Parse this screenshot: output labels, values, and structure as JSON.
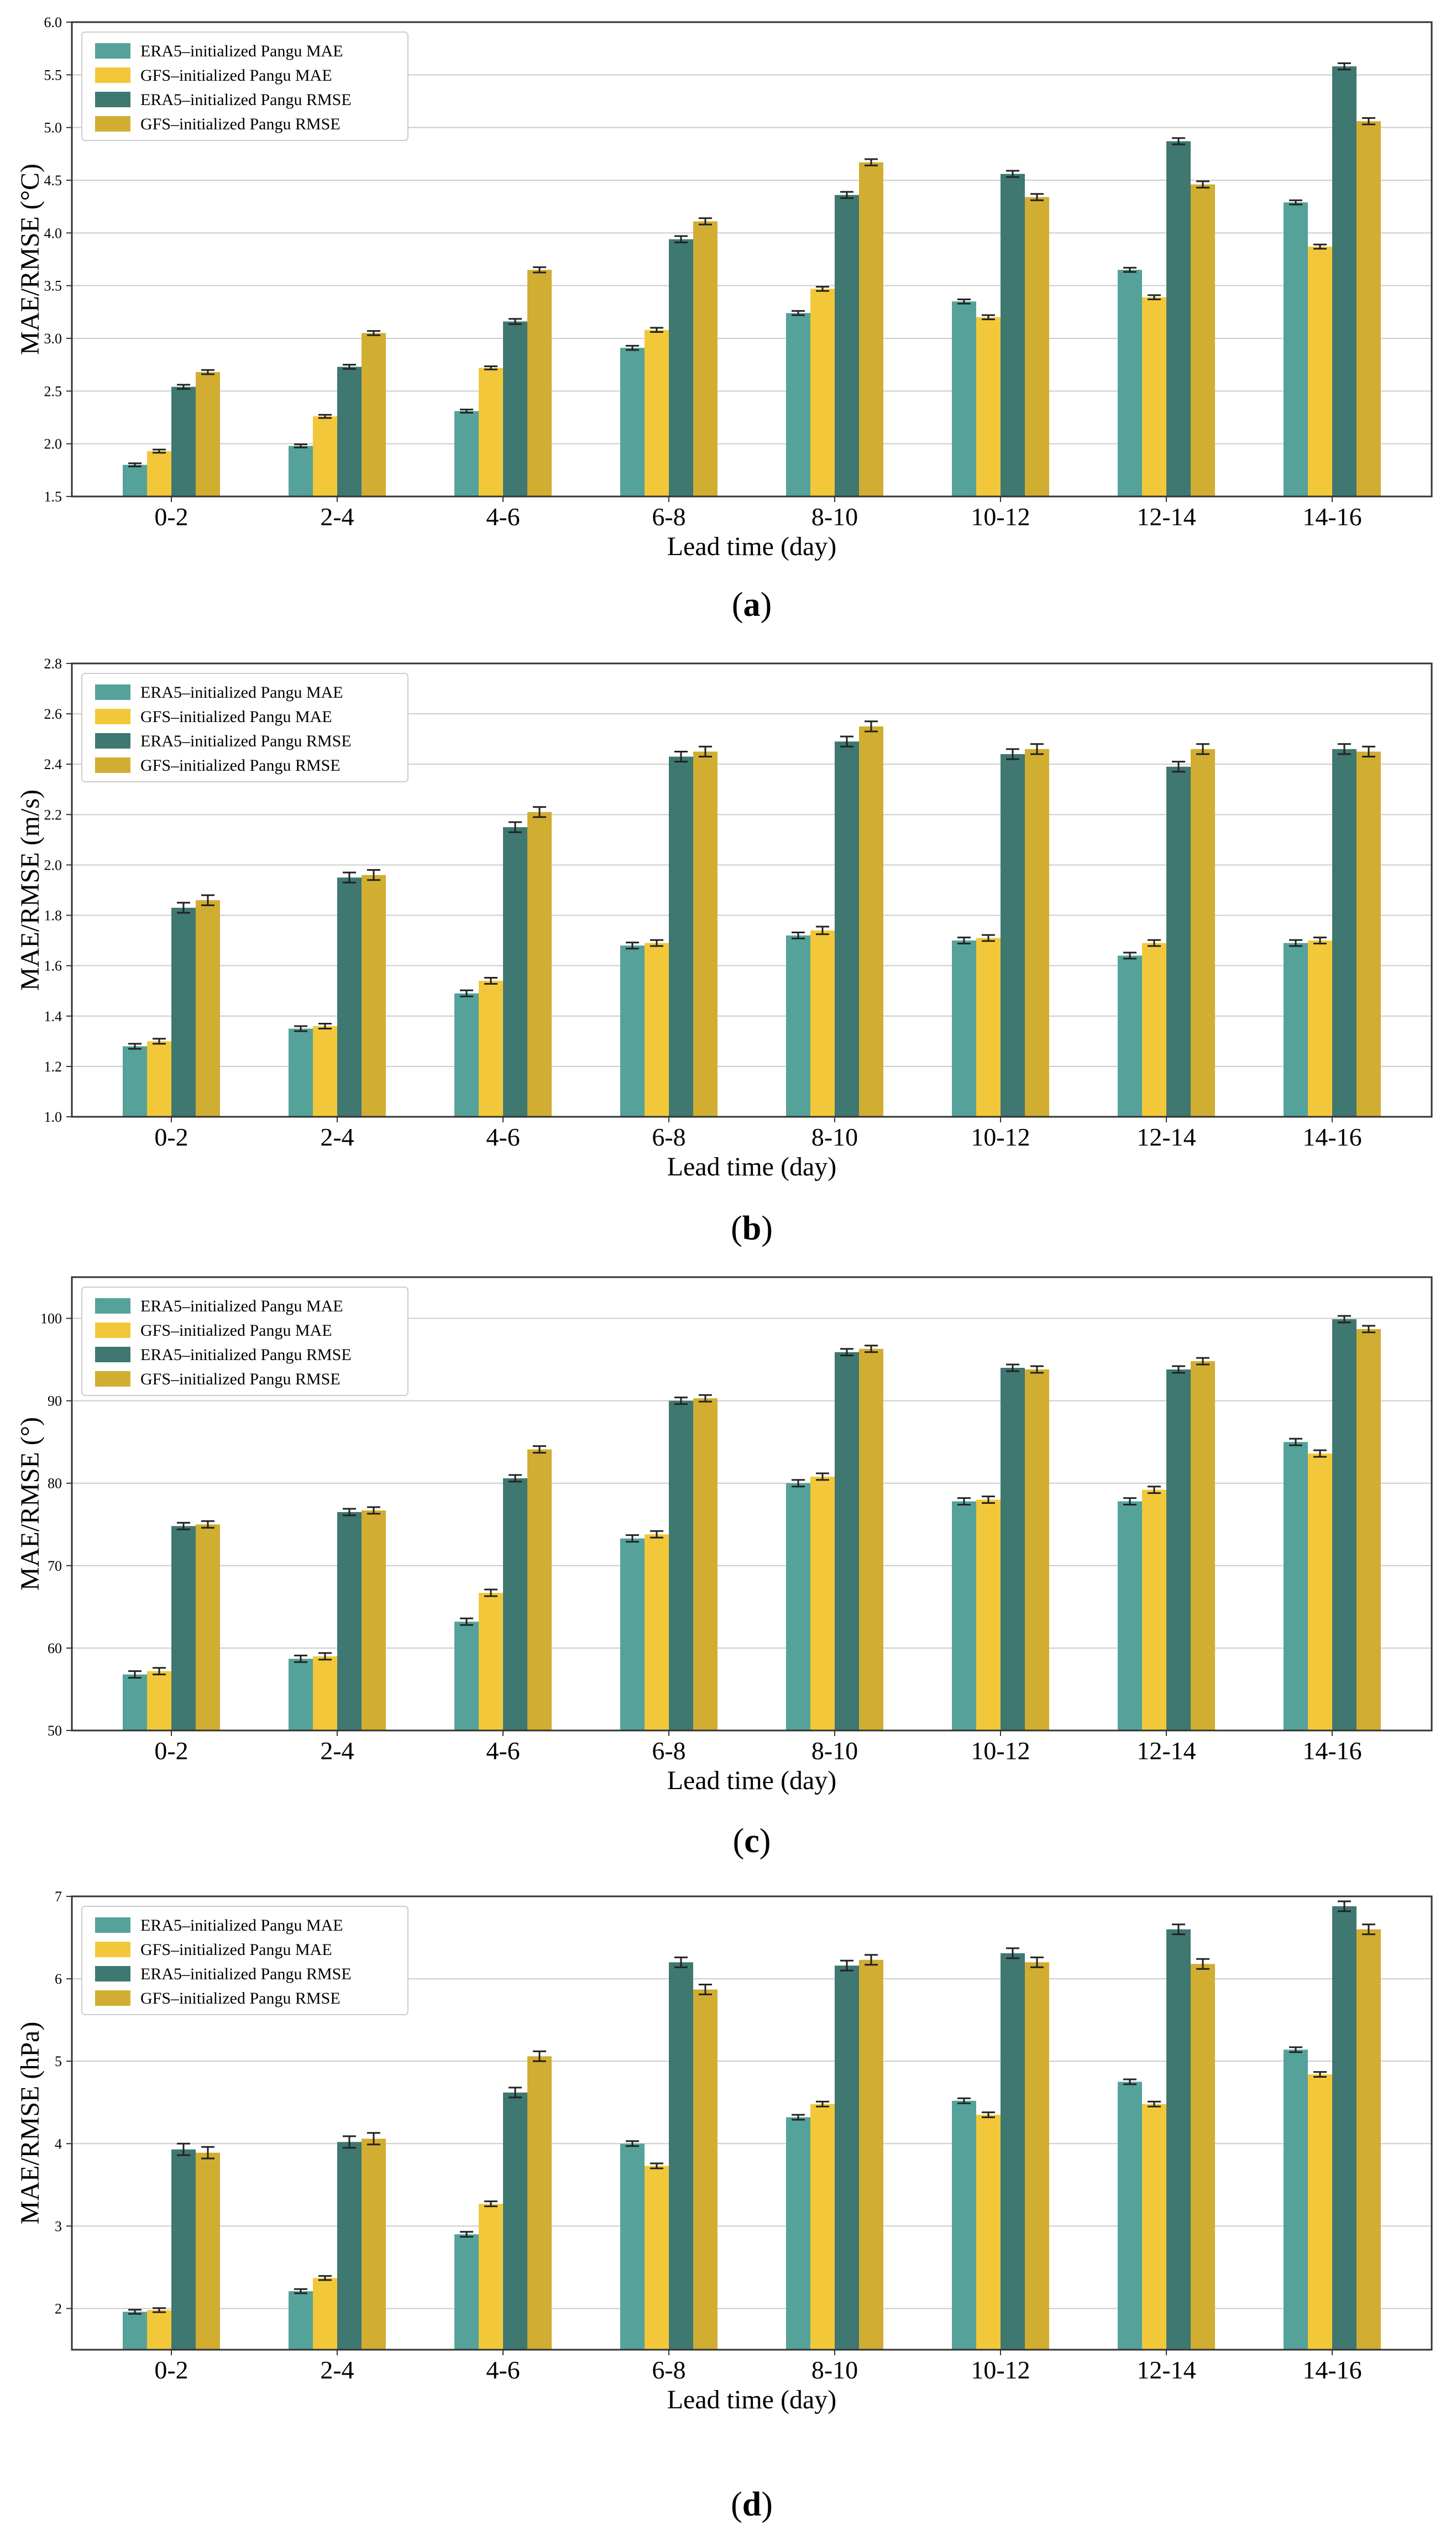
{
  "colors": {
    "era5_mae": "#55a29a",
    "gfs_mae": "#f2c83a",
    "era5_rmse": "#3f7771",
    "gfs_rmse": "#d1ad32",
    "grid": "#cccccc",
    "errorbar": "#222222"
  },
  "chart_data": [
    {
      "type": "bar",
      "panel_label": "a",
      "title": "",
      "xlabel": "Lead time (day)",
      "ylabel": "MAE/RMSE (°C)",
      "ylim": [
        1.5,
        6.0
      ],
      "yticks": [
        1.5,
        2.0,
        2.5,
        3.0,
        3.5,
        4.0,
        4.5,
        5.0,
        5.5,
        6.0
      ],
      "ytick_labels": [
        "1.5",
        "2.0",
        "2.5",
        "3.0",
        "3.5",
        "4.0",
        "4.5",
        "5.0",
        "5.5",
        "6.0"
      ],
      "grid": true,
      "legend_position": "top-left",
      "categories": [
        "0-2",
        "2-4",
        "4-6",
        "6-8",
        "8-10",
        "10-12",
        "12-14",
        "14-16"
      ],
      "series": [
        {
          "name": "ERA5–initialized Pangu MAE",
          "color_key": "era5_mae",
          "values": [
            1.8,
            1.98,
            2.31,
            2.91,
            3.24,
            3.35,
            3.65,
            4.29
          ],
          "errors": [
            0.015,
            0.015,
            0.015,
            0.02,
            0.02,
            0.02,
            0.02,
            0.02
          ]
        },
        {
          "name": "GFS–initialized Pangu MAE",
          "color_key": "gfs_mae",
          "values": [
            1.93,
            2.26,
            2.72,
            3.08,
            3.47,
            3.2,
            3.39,
            3.87
          ],
          "errors": [
            0.015,
            0.015,
            0.015,
            0.02,
            0.02,
            0.02,
            0.02,
            0.02
          ]
        },
        {
          "name": "ERA5–initialized Pangu RMSE",
          "color_key": "era5_rmse",
          "values": [
            2.54,
            2.73,
            3.16,
            3.94,
            4.36,
            4.56,
            4.87,
            5.58
          ],
          "errors": [
            0.02,
            0.02,
            0.025,
            0.03,
            0.03,
            0.03,
            0.03,
            0.03
          ]
        },
        {
          "name": "GFS–initialized Pangu RMSE",
          "color_key": "gfs_rmse",
          "values": [
            2.68,
            3.05,
            3.65,
            4.11,
            4.67,
            4.34,
            4.46,
            5.06
          ],
          "errors": [
            0.02,
            0.02,
            0.025,
            0.03,
            0.03,
            0.03,
            0.03,
            0.03
          ]
        }
      ]
    },
    {
      "type": "bar",
      "panel_label": "b",
      "title": "",
      "xlabel": "Lead time (day)",
      "ylabel": "MAE/RMSE (m/s)",
      "ylim": [
        1.0,
        2.8
      ],
      "yticks": [
        1.0,
        1.2,
        1.4,
        1.6,
        1.8,
        2.0,
        2.2,
        2.4,
        2.6,
        2.8
      ],
      "ytick_labels": [
        "1.0",
        "1.2",
        "1.4",
        "1.6",
        "1.8",
        "2.0",
        "2.2",
        "2.4",
        "2.6",
        "2.8"
      ],
      "grid": true,
      "legend_position": "top-left",
      "categories": [
        "0-2",
        "2-4",
        "4-6",
        "6-8",
        "8-10",
        "10-12",
        "12-14",
        "14-16"
      ],
      "series": [
        {
          "name": "ERA5–initialized Pangu MAE",
          "color_key": "era5_mae",
          "values": [
            1.28,
            1.35,
            1.49,
            1.68,
            1.72,
            1.7,
            1.64,
            1.69
          ],
          "errors": [
            0.01,
            0.01,
            0.012,
            0.012,
            0.012,
            0.012,
            0.012,
            0.012
          ]
        },
        {
          "name": "GFS–initialized Pangu MAE",
          "color_key": "gfs_mae",
          "values": [
            1.3,
            1.36,
            1.54,
            1.69,
            1.74,
            1.71,
            1.69,
            1.7
          ],
          "errors": [
            0.01,
            0.01,
            0.012,
            0.012,
            0.015,
            0.012,
            0.012,
            0.012
          ]
        },
        {
          "name": "ERA5–initialized Pangu RMSE",
          "color_key": "era5_rmse",
          "values": [
            1.83,
            1.95,
            2.15,
            2.43,
            2.49,
            2.44,
            2.39,
            2.46
          ],
          "errors": [
            0.02,
            0.02,
            0.02,
            0.02,
            0.02,
            0.02,
            0.02,
            0.02
          ]
        },
        {
          "name": "GFS–initialized Pangu RMSE",
          "color_key": "gfs_rmse",
          "values": [
            1.86,
            1.96,
            2.21,
            2.45,
            2.55,
            2.46,
            2.46,
            2.45
          ],
          "errors": [
            0.02,
            0.02,
            0.02,
            0.02,
            0.02,
            0.02,
            0.02,
            0.02
          ]
        }
      ]
    },
    {
      "type": "bar",
      "panel_label": "c",
      "title": "",
      "xlabel": "Lead time (day)",
      "ylabel": "MAE/RMSE (°)",
      "ylim": [
        50,
        105
      ],
      "yticks": [
        50,
        60,
        70,
        80,
        90,
        100
      ],
      "ytick_labels": [
        "50",
        "60",
        "70",
        "80",
        "90",
        "100"
      ],
      "grid": true,
      "legend_position": "top-left",
      "categories": [
        "0-2",
        "2-4",
        "4-6",
        "6-8",
        "8-10",
        "10-12",
        "12-14",
        "14-16"
      ],
      "series": [
        {
          "name": "ERA5–initialized Pangu MAE",
          "color_key": "era5_mae",
          "values": [
            56.8,
            58.7,
            63.2,
            73.3,
            80.0,
            77.8,
            77.8,
            85.0
          ],
          "errors": [
            0.4,
            0.4,
            0.4,
            0.4,
            0.4,
            0.4,
            0.4,
            0.4
          ]
        },
        {
          "name": "GFS–initialized Pangu MAE",
          "color_key": "gfs_mae",
          "values": [
            57.2,
            59.0,
            66.7,
            73.8,
            80.8,
            78.0,
            79.2,
            83.6
          ],
          "errors": [
            0.4,
            0.4,
            0.4,
            0.4,
            0.4,
            0.4,
            0.4,
            0.4
          ]
        },
        {
          "name": "ERA5–initialized Pangu RMSE",
          "color_key": "era5_rmse",
          "values": [
            74.8,
            76.5,
            80.6,
            90.0,
            95.9,
            94.0,
            93.8,
            99.9
          ],
          "errors": [
            0.4,
            0.4,
            0.4,
            0.4,
            0.4,
            0.4,
            0.4,
            0.4
          ]
        },
        {
          "name": "GFS–initialized Pangu RMSE",
          "color_key": "gfs_rmse",
          "values": [
            75.0,
            76.7,
            84.1,
            90.3,
            96.3,
            93.8,
            94.8,
            98.7
          ],
          "errors": [
            0.4,
            0.4,
            0.4,
            0.4,
            0.4,
            0.4,
            0.4,
            0.4
          ]
        }
      ]
    },
    {
      "type": "bar",
      "panel_label": "d",
      "title": "",
      "xlabel": "Lead time (day)",
      "ylabel": "MAE/RMSE (hPa)",
      "ylim": [
        1.5,
        7.0
      ],
      "yticks": [
        2,
        3,
        4,
        5,
        6,
        7
      ],
      "ytick_labels": [
        "2",
        "3",
        "4",
        "5",
        "6",
        "7"
      ],
      "grid": true,
      "legend_position": "top-left",
      "categories": [
        "0-2",
        "2-4",
        "4-6",
        "6-8",
        "8-10",
        "10-12",
        "12-14",
        "14-16"
      ],
      "series": [
        {
          "name": "ERA5–initialized Pangu MAE",
          "color_key": "era5_mae",
          "values": [
            1.96,
            2.21,
            2.9,
            4.0,
            4.32,
            4.52,
            4.75,
            5.14
          ],
          "errors": [
            0.025,
            0.025,
            0.03,
            0.03,
            0.03,
            0.03,
            0.03,
            0.03
          ]
        },
        {
          "name": "GFS–initialized Pangu MAE",
          "color_key": "gfs_mae",
          "values": [
            1.98,
            2.37,
            3.27,
            3.73,
            4.48,
            4.35,
            4.48,
            4.84
          ],
          "errors": [
            0.025,
            0.025,
            0.03,
            0.03,
            0.03,
            0.03,
            0.03,
            0.03
          ]
        },
        {
          "name": "ERA5–initialized Pangu RMSE",
          "color_key": "era5_rmse",
          "values": [
            3.93,
            4.02,
            4.62,
            6.2,
            6.16,
            6.31,
            6.6,
            6.88
          ],
          "errors": [
            0.07,
            0.07,
            0.06,
            0.06,
            0.06,
            0.06,
            0.06,
            0.06
          ]
        },
        {
          "name": "GFS–initialized Pangu RMSE",
          "color_key": "gfs_rmse",
          "values": [
            3.89,
            4.06,
            5.06,
            5.87,
            6.23,
            6.2,
            6.18,
            6.6
          ],
          "errors": [
            0.07,
            0.07,
            0.06,
            0.06,
            0.06,
            0.06,
            0.06,
            0.06
          ]
        }
      ]
    }
  ]
}
